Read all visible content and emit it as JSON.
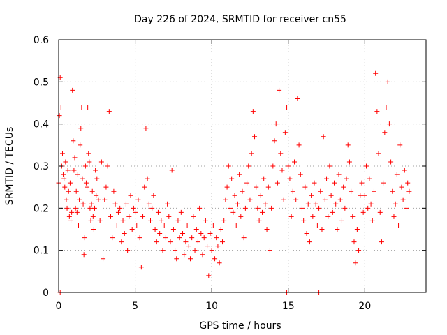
{
  "chart_data": {
    "type": "scatter",
    "title": "Day 226 of 2024, SRMTID for receiver cn55",
    "xlabel": "GPS time / hours",
    "ylabel": "SRMTID / TECUs",
    "xlim": [
      0,
      24
    ],
    "ylim": [
      0,
      0.6
    ],
    "xticks": [
      "0",
      "5",
      "10",
      "15",
      "20"
    ],
    "yticks": [
      "0",
      "0.1",
      "0.2",
      "0.3",
      "0.4",
      "0.5",
      "0.6"
    ],
    "xtick_values": [
      0,
      5,
      10,
      15,
      20
    ],
    "ytick_values": [
      0,
      0.1,
      0.2,
      0.3,
      0.4,
      0.5,
      0.6
    ],
    "grid": true,
    "marker": "plus",
    "color": "#ff0000",
    "series": [
      {
        "name": "cn55",
        "points": [
          [
            0.0,
            0.26
          ],
          [
            0.05,
            0.42
          ],
          [
            0.1,
            0.51
          ],
          [
            0.1,
            0.0
          ],
          [
            0.15,
            0.44
          ],
          [
            0.2,
            0.3
          ],
          [
            0.25,
            0.33
          ],
          [
            0.3,
            0.28
          ],
          [
            0.35,
            0.27
          ],
          [
            0.4,
            0.25
          ],
          [
            0.45,
            0.31
          ],
          [
            0.5,
            0.22
          ],
          [
            0.55,
            0.2
          ],
          [
            0.6,
            0.29
          ],
          [
            0.65,
            0.24
          ],
          [
            0.7,
            0.18
          ],
          [
            0.75,
            0.26
          ],
          [
            0.8,
            0.17
          ],
          [
            0.85,
            0.19
          ],
          [
            0.9,
            0.48
          ],
          [
            0.95,
            0.36
          ],
          [
            1.0,
            0.29
          ],
          [
            1.05,
            0.32
          ],
          [
            1.1,
            0.2
          ],
          [
            1.15,
            0.24
          ],
          [
            1.2,
            0.19
          ],
          [
            1.25,
            0.28
          ],
          [
            1.3,
            0.16
          ],
          [
            1.35,
            0.22
          ],
          [
            1.4,
            0.35
          ],
          [
            1.45,
            0.39
          ],
          [
            1.5,
            0.44
          ],
          [
            1.55,
            0.27
          ],
          [
            1.6,
            0.21
          ],
          [
            1.65,
            0.09
          ],
          [
            1.7,
            0.13
          ],
          [
            1.75,
            0.3
          ],
          [
            1.8,
            0.26
          ],
          [
            1.85,
            0.25
          ],
          [
            1.9,
            0.44
          ],
          [
            1.95,
            0.33
          ],
          [
            2.0,
            0.31
          ],
          [
            2.05,
            0.2
          ],
          [
            2.1,
            0.17
          ],
          [
            2.15,
            0.21
          ],
          [
            2.2,
            0.24
          ],
          [
            2.25,
            0.18
          ],
          [
            2.3,
            0.15
          ],
          [
            2.35,
            0.2
          ],
          [
            2.4,
            0.29
          ],
          [
            2.45,
            0.23
          ],
          [
            2.5,
            0.27
          ],
          [
            2.6,
            0.22
          ],
          [
            2.7,
            0.17
          ],
          [
            2.8,
            0.31
          ],
          [
            2.9,
            0.08
          ],
          [
            3.0,
            0.22
          ],
          [
            3.1,
            0.25
          ],
          [
            3.2,
            0.3
          ],
          [
            3.3,
            0.43
          ],
          [
            3.4,
            0.18
          ],
          [
            3.5,
            0.13
          ],
          [
            3.6,
            0.24
          ],
          [
            3.7,
            0.21
          ],
          [
            3.8,
            0.16
          ],
          [
            3.9,
            0.19
          ],
          [
            4.0,
            0.2
          ],
          [
            4.1,
            0.12
          ],
          [
            4.2,
            0.17
          ],
          [
            4.3,
            0.14
          ],
          [
            4.4,
            0.21
          ],
          [
            4.5,
            0.1
          ],
          [
            4.6,
            0.18
          ],
          [
            4.7,
            0.23
          ],
          [
            4.8,
            0.15
          ],
          [
            4.9,
            0.2
          ],
          [
            5.0,
            0.19
          ],
          [
            5.1,
            0.16
          ],
          [
            5.2,
            0.22
          ],
          [
            5.3,
            0.13
          ],
          [
            5.4,
            0.06
          ],
          [
            5.5,
            0.18
          ],
          [
            5.6,
            0.25
          ],
          [
            5.7,
            0.39
          ],
          [
            5.8,
            0.27
          ],
          [
            5.9,
            0.21
          ],
          [
            6.0,
            0.17
          ],
          [
            6.1,
            0.2
          ],
          [
            6.2,
            0.23
          ],
          [
            6.3,
            0.15
          ],
          [
            6.4,
            0.12
          ],
          [
            6.5,
            0.19
          ],
          [
            6.6,
            0.14
          ],
          [
            6.7,
            0.17
          ],
          [
            6.8,
            0.1
          ],
          [
            6.9,
            0.16
          ],
          [
            7.0,
            0.13
          ],
          [
            7.1,
            0.21
          ],
          [
            7.2,
            0.18
          ],
          [
            7.3,
            0.12
          ],
          [
            7.4,
            0.29
          ],
          [
            7.5,
            0.15
          ],
          [
            7.6,
            0.1
          ],
          [
            7.7,
            0.08
          ],
          [
            7.8,
            0.17
          ],
          [
            7.9,
            0.13
          ],
          [
            8.0,
            0.19
          ],
          [
            8.1,
            0.14
          ],
          [
            8.2,
            0.09
          ],
          [
            8.3,
            0.12
          ],
          [
            8.4,
            0.16
          ],
          [
            8.5,
            0.11
          ],
          [
            8.6,
            0.08
          ],
          [
            8.7,
            0.13
          ],
          [
            8.8,
            0.18
          ],
          [
            8.9,
            0.1
          ],
          [
            9.0,
            0.15
          ],
          [
            9.1,
            0.12
          ],
          [
            9.2,
            0.2
          ],
          [
            9.3,
            0.14
          ],
          [
            9.4,
            0.09
          ],
          [
            9.5,
            0.13
          ],
          [
            9.6,
            0.17
          ],
          [
            9.7,
            0.11
          ],
          [
            9.8,
            0.04
          ],
          [
            9.9,
            0.14
          ],
          [
            10.0,
            0.1
          ],
          [
            10.1,
            0.16
          ],
          [
            10.2,
            0.08
          ],
          [
            10.3,
            0.13
          ],
          [
            10.4,
            0.11
          ],
          [
            10.5,
            0.07
          ],
          [
            10.6,
            0.15
          ],
          [
            10.7,
            0.12
          ],
          [
            10.8,
            0.17
          ],
          [
            10.9,
            0.22
          ],
          [
            11.0,
            0.25
          ],
          [
            11.1,
            0.3
          ],
          [
            11.2,
            0.2
          ],
          [
            11.3,
            0.27
          ],
          [
            11.4,
            0.19
          ],
          [
            11.5,
            0.23
          ],
          [
            11.6,
            0.16
          ],
          [
            11.7,
            0.21
          ],
          [
            11.8,
            0.28
          ],
          [
            11.9,
            0.18
          ],
          [
            12.0,
            0.24
          ],
          [
            12.1,
            0.13
          ],
          [
            12.2,
            0.2
          ],
          [
            12.3,
            0.26
          ],
          [
            12.4,
            0.3
          ],
          [
            12.5,
            0.22
          ],
          [
            12.6,
            0.33
          ],
          [
            12.7,
            0.43
          ],
          [
            12.8,
            0.37
          ],
          [
            12.9,
            0.25
          ],
          [
            13.0,
            0.2
          ],
          [
            13.1,
            0.17
          ],
          [
            13.2,
            0.23
          ],
          [
            13.3,
            0.19
          ],
          [
            13.4,
            0.27
          ],
          [
            13.5,
            0.21
          ],
          [
            13.6,
            0.15
          ],
          [
            13.7,
            0.25
          ],
          [
            13.8,
            0.1
          ],
          [
            13.9,
            0.2
          ],
          [
            14.0,
            0.3
          ],
          [
            14.1,
            0.36
          ],
          [
            14.2,
            0.4
          ],
          [
            14.3,
            0.26
          ],
          [
            14.4,
            0.48
          ],
          [
            14.5,
            0.33
          ],
          [
            14.6,
            0.29
          ],
          [
            14.7,
            0.22
          ],
          [
            14.8,
            0.38
          ],
          [
            14.9,
            0.44
          ],
          [
            14.9,
            0.0
          ],
          [
            15.0,
            0.3
          ],
          [
            15.1,
            0.27
          ],
          [
            15.2,
            0.18
          ],
          [
            15.3,
            0.24
          ],
          [
            15.4,
            0.31
          ],
          [
            15.5,
            0.22
          ],
          [
            15.6,
            0.46
          ],
          [
            15.7,
            0.35
          ],
          [
            15.8,
            0.28
          ],
          [
            15.9,
            0.2
          ],
          [
            16.0,
            0.17
          ],
          [
            16.1,
            0.25
          ],
          [
            16.2,
            0.14
          ],
          [
            16.3,
            0.21
          ],
          [
            16.4,
            0.12
          ],
          [
            16.5,
            0.23
          ],
          [
            16.6,
            0.18
          ],
          [
            16.7,
            0.26
          ],
          [
            16.8,
            0.21
          ],
          [
            16.9,
            0.16
          ],
          [
            17.0,
            0.0
          ],
          [
            17.0,
            0.2
          ],
          [
            17.1,
            0.24
          ],
          [
            17.2,
            0.15
          ],
          [
            17.3,
            0.37
          ],
          [
            17.4,
            0.22
          ],
          [
            17.5,
            0.27
          ],
          [
            17.6,
            0.18
          ],
          [
            17.7,
            0.3
          ],
          [
            17.8,
            0.23
          ],
          [
            17.9,
            0.19
          ],
          [
            18.0,
            0.26
          ],
          [
            18.1,
            0.21
          ],
          [
            18.2,
            0.15
          ],
          [
            18.3,
            0.28
          ],
          [
            18.4,
            0.22
          ],
          [
            18.5,
            0.17
          ],
          [
            18.6,
            0.25
          ],
          [
            18.7,
            0.2
          ],
          [
            18.8,
            0.27
          ],
          [
            18.9,
            0.35
          ],
          [
            19.0,
            0.31
          ],
          [
            19.1,
            0.24
          ],
          [
            19.2,
            0.18
          ],
          [
            19.3,
            0.12
          ],
          [
            19.4,
            0.07
          ],
          [
            19.5,
            0.15
          ],
          [
            19.6,
            0.1
          ],
          [
            19.7,
            0.23
          ],
          [
            19.8,
            0.26
          ],
          [
            19.9,
            0.19
          ],
          [
            20.0,
            0.23
          ],
          [
            20.1,
            0.3
          ],
          [
            20.2,
            0.2
          ],
          [
            20.3,
            0.27
          ],
          [
            20.4,
            0.21
          ],
          [
            20.5,
            0.17
          ],
          [
            20.6,
            0.24
          ],
          [
            20.7,
            0.52
          ],
          [
            20.8,
            0.43
          ],
          [
            20.9,
            0.33
          ],
          [
            21.0,
            0.19
          ],
          [
            21.1,
            0.12
          ],
          [
            21.2,
            0.26
          ],
          [
            21.3,
            0.38
          ],
          [
            21.4,
            0.44
          ],
          [
            21.5,
            0.5
          ],
          [
            21.6,
            0.4
          ],
          [
            21.7,
            0.31
          ],
          [
            21.8,
            0.24
          ],
          [
            21.9,
            0.18
          ],
          [
            22.0,
            0.21
          ],
          [
            22.1,
            0.28
          ],
          [
            22.2,
            0.16
          ],
          [
            22.3,
            0.35
          ],
          [
            22.4,
            0.25
          ],
          [
            22.5,
            0.22
          ],
          [
            22.6,
            0.29
          ],
          [
            22.7,
            0.2
          ],
          [
            22.8,
            0.26
          ],
          [
            22.9,
            0.24
          ]
        ]
      }
    ]
  }
}
